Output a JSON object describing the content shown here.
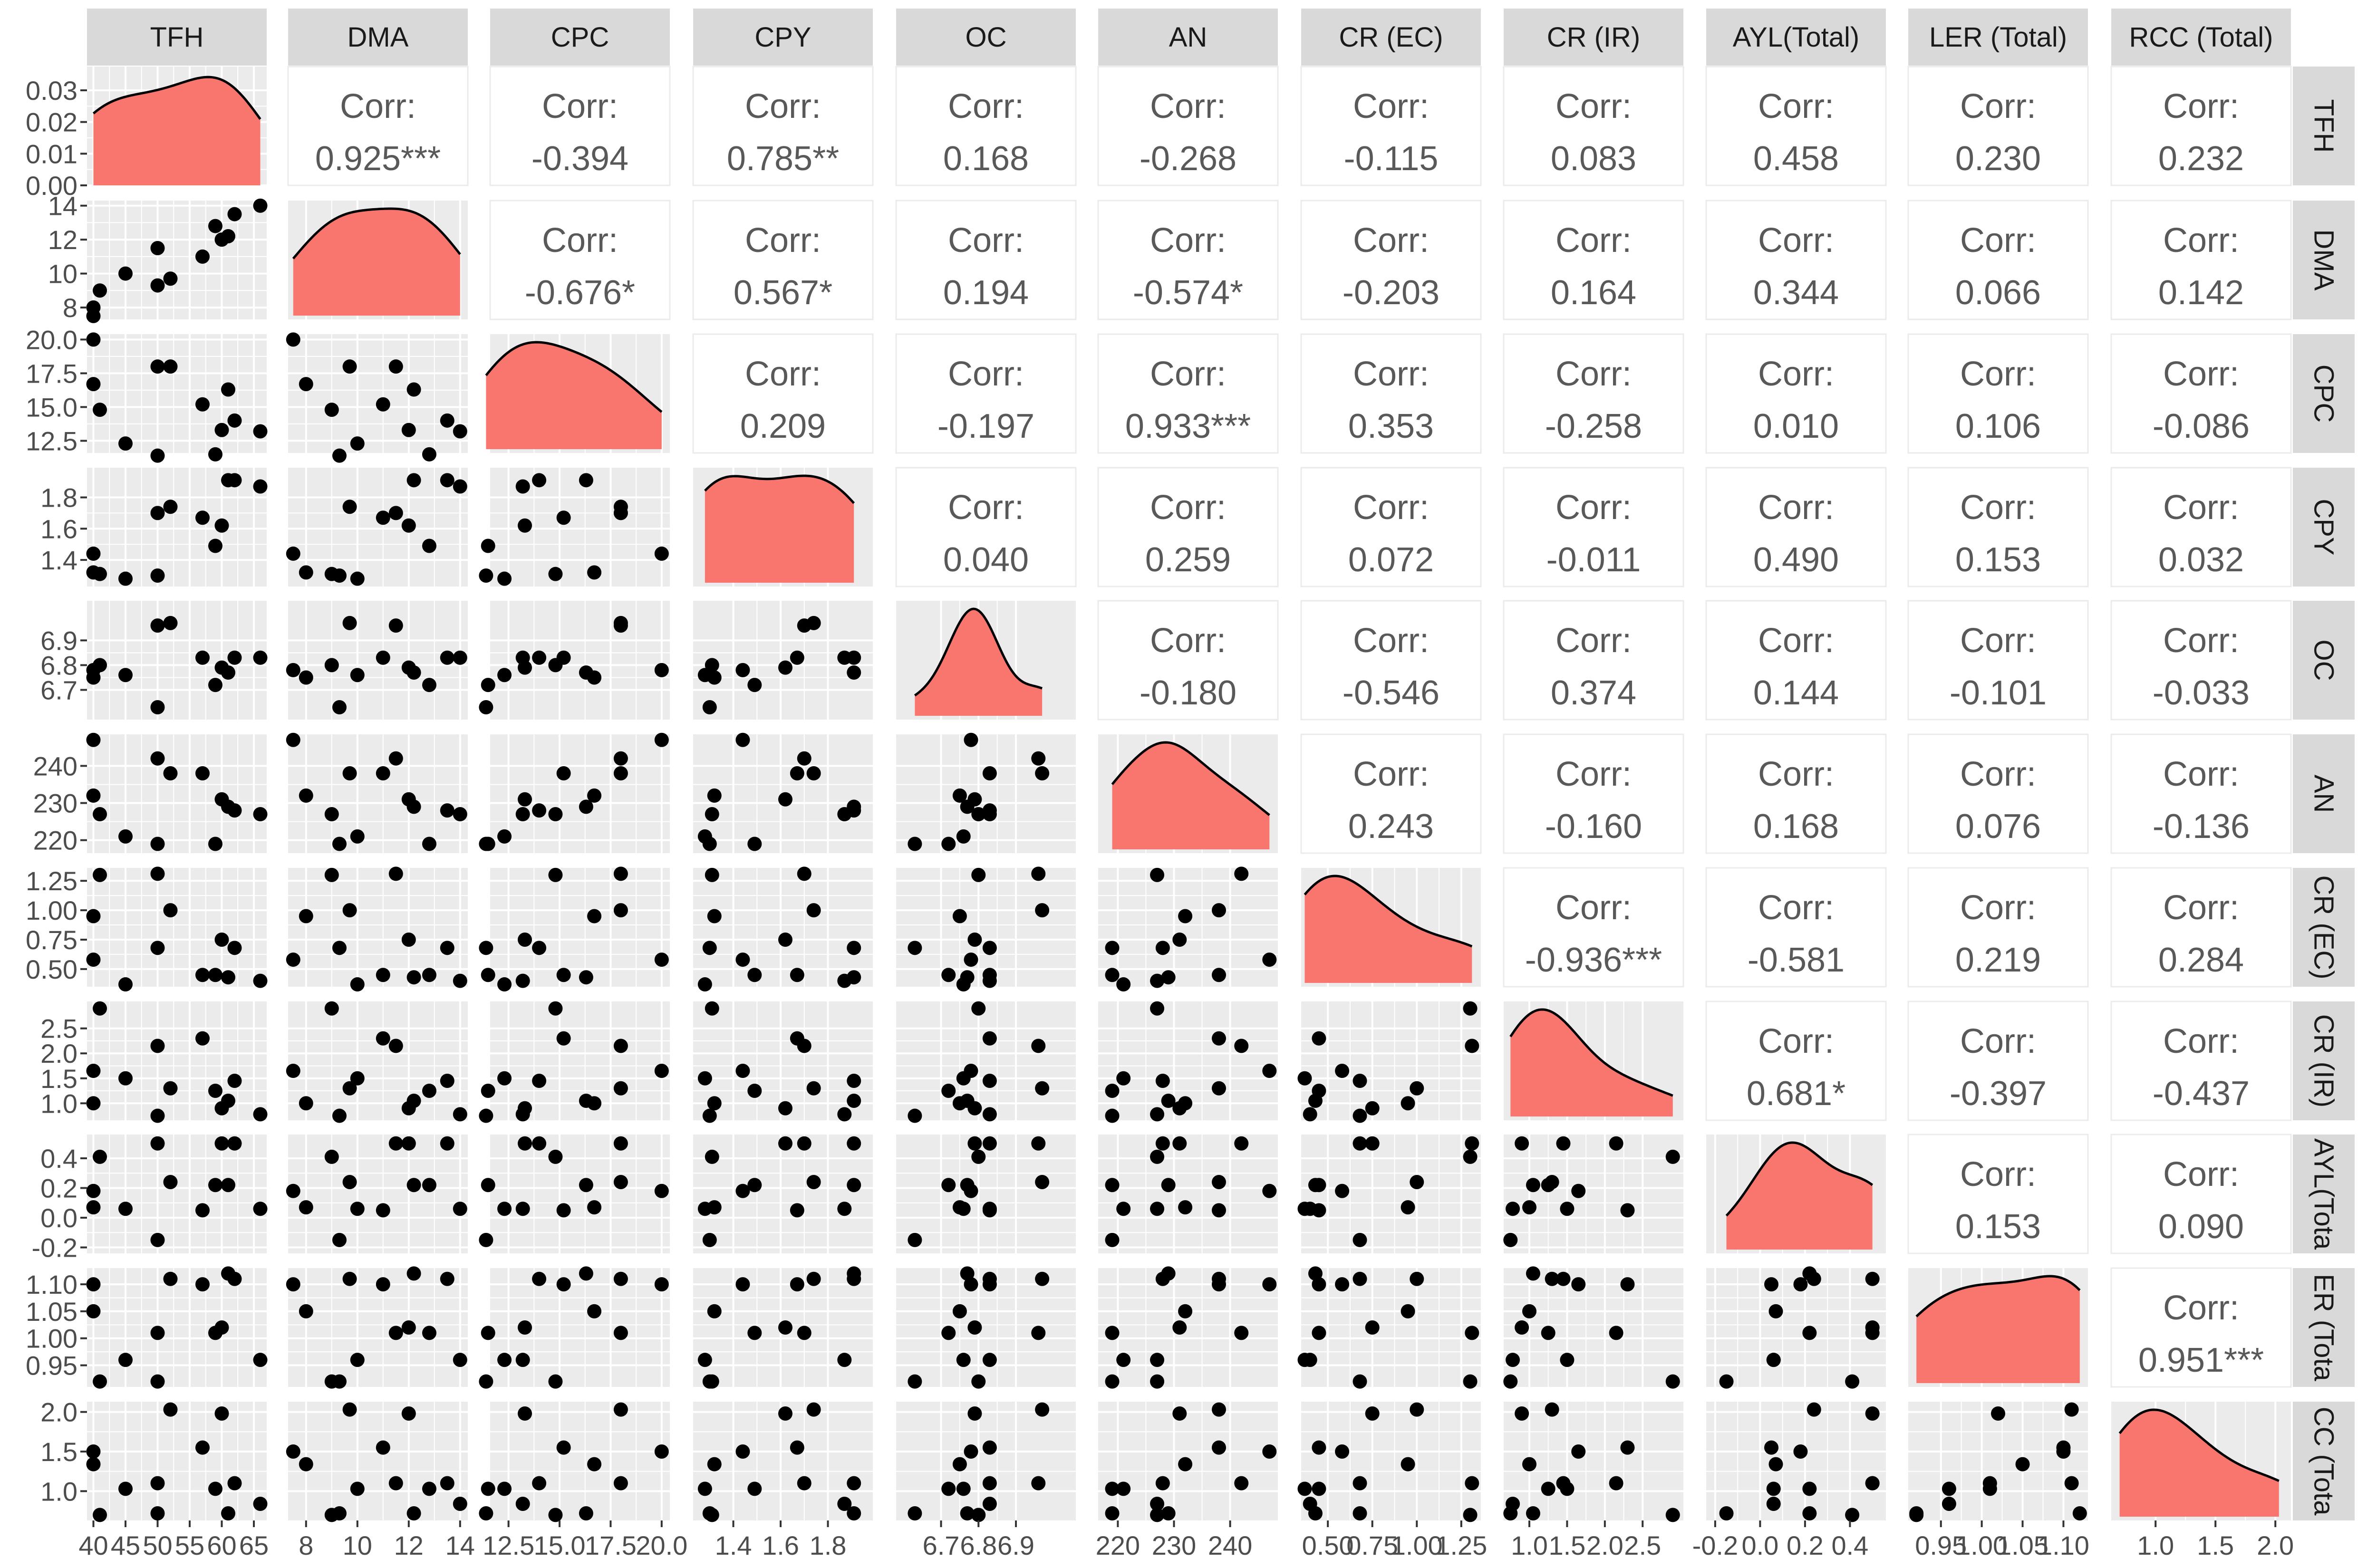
{
  "chart_data": {
    "type": "scatter-matrix",
    "variables": [
      "TFH",
      "DMA",
      "CPC",
      "CPY",
      "OC",
      "AN",
      "CR (EC)",
      "CR (IR)",
      "AYL(Total)",
      "LER (Total)",
      "RCC (Total)"
    ],
    "strip_labels_top": [
      "TFH",
      "DMA",
      "CPC",
      "CPY",
      "OC",
      "AN",
      "CR (EC)",
      "CR (IR)",
      "AYL(Total)",
      "LER (Total)",
      "RCC (Total)"
    ],
    "strip_labels_right": [
      "TFH",
      "DMA",
      "CPC",
      "CPY",
      "OC",
      "AN",
      "CR (EC)",
      "CR (IR)",
      "AYL(Tota",
      "ER (Tota",
      "CC (Tota"
    ],
    "corr_label": "Corr:",
    "correlations": [
      {
        "row": 0,
        "col": 1,
        "value": "0.925***"
      },
      {
        "row": 0,
        "col": 2,
        "value": "-0.394"
      },
      {
        "row": 0,
        "col": 3,
        "value": "0.785**"
      },
      {
        "row": 0,
        "col": 4,
        "value": "0.168"
      },
      {
        "row": 0,
        "col": 5,
        "value": "-0.268"
      },
      {
        "row": 0,
        "col": 6,
        "value": "-0.115"
      },
      {
        "row": 0,
        "col": 7,
        "value": "0.083"
      },
      {
        "row": 0,
        "col": 8,
        "value": "0.458"
      },
      {
        "row": 0,
        "col": 9,
        "value": "0.230"
      },
      {
        "row": 0,
        "col": 10,
        "value": "0.232"
      },
      {
        "row": 1,
        "col": 2,
        "value": "-0.676*"
      },
      {
        "row": 1,
        "col": 3,
        "value": "0.567*"
      },
      {
        "row": 1,
        "col": 4,
        "value": "0.194"
      },
      {
        "row": 1,
        "col": 5,
        "value": "-0.574*"
      },
      {
        "row": 1,
        "col": 6,
        "value": "-0.203"
      },
      {
        "row": 1,
        "col": 7,
        "value": "0.164"
      },
      {
        "row": 1,
        "col": 8,
        "value": "0.344"
      },
      {
        "row": 1,
        "col": 9,
        "value": "0.066"
      },
      {
        "row": 1,
        "col": 10,
        "value": "0.142"
      },
      {
        "row": 2,
        "col": 3,
        "value": "0.209"
      },
      {
        "row": 2,
        "col": 4,
        "value": "-0.197"
      },
      {
        "row": 2,
        "col": 5,
        "value": "0.933***"
      },
      {
        "row": 2,
        "col": 6,
        "value": "0.353"
      },
      {
        "row": 2,
        "col": 7,
        "value": "-0.258"
      },
      {
        "row": 2,
        "col": 8,
        "value": "0.010"
      },
      {
        "row": 2,
        "col": 9,
        "value": "0.106"
      },
      {
        "row": 2,
        "col": 10,
        "value": "-0.086"
      },
      {
        "row": 3,
        "col": 4,
        "value": "0.040"
      },
      {
        "row": 3,
        "col": 5,
        "value": "0.259"
      },
      {
        "row": 3,
        "col": 6,
        "value": "0.072"
      },
      {
        "row": 3,
        "col": 7,
        "value": "-0.011"
      },
      {
        "row": 3,
        "col": 8,
        "value": "0.490"
      },
      {
        "row": 3,
        "col": 9,
        "value": "0.153"
      },
      {
        "row": 3,
        "col": 10,
        "value": "0.032"
      },
      {
        "row": 4,
        "col": 5,
        "value": "-0.180"
      },
      {
        "row": 4,
        "col": 6,
        "value": "-0.546"
      },
      {
        "row": 4,
        "col": 7,
        "value": "0.374"
      },
      {
        "row": 4,
        "col": 8,
        "value": "0.144"
      },
      {
        "row": 4,
        "col": 9,
        "value": "-0.101"
      },
      {
        "row": 4,
        "col": 10,
        "value": "-0.033"
      },
      {
        "row": 5,
        "col": 6,
        "value": "0.243"
      },
      {
        "row": 5,
        "col": 7,
        "value": "-0.160"
      },
      {
        "row": 5,
        "col": 8,
        "value": "0.168"
      },
      {
        "row": 5,
        "col": 9,
        "value": "0.076"
      },
      {
        "row": 5,
        "col": 10,
        "value": "-0.136"
      },
      {
        "row": 6,
        "col": 7,
        "value": "-0.936***"
      },
      {
        "row": 6,
        "col": 8,
        "value": "-0.581"
      },
      {
        "row": 6,
        "col": 9,
        "value": "0.219"
      },
      {
        "row": 6,
        "col": 10,
        "value": "0.284"
      },
      {
        "row": 7,
        "col": 8,
        "value": "0.681*"
      },
      {
        "row": 7,
        "col": 9,
        "value": "-0.397"
      },
      {
        "row": 7,
        "col": 10,
        "value": "-0.437"
      },
      {
        "row": 8,
        "col": 9,
        "value": "0.153"
      },
      {
        "row": 8,
        "col": 10,
        "value": "0.090"
      },
      {
        "row": 9,
        "col": 10,
        "value": "0.951***"
      }
    ],
    "x_axes": [
      {
        "range": [
          39,
          67
        ],
        "ticks": [
          40,
          45,
          50,
          55,
          60,
          65
        ],
        "tick_labels": [
          "40",
          "45",
          "50",
          "55",
          "60",
          "65"
        ]
      },
      {
        "range": [
          7.3,
          14.3
        ],
        "ticks": [
          8,
          10,
          12,
          14
        ],
        "tick_labels": [
          "8",
          "10",
          "12",
          "14"
        ]
      },
      {
        "range": [
          11.6,
          20.4
        ],
        "ticks": [
          12.5,
          15.0,
          17.5,
          20.0
        ],
        "tick_labels": [
          "12.5",
          "15.0",
          "17.5",
          "20.0"
        ]
      },
      {
        "range": [
          1.23,
          1.99
        ],
        "ticks": [
          1.4,
          1.6,
          1.8
        ],
        "tick_labels": [
          "1.4",
          "1.6",
          "1.8"
        ]
      },
      {
        "range": [
          6.58,
          7.06
        ],
        "ticks": [
          6.7,
          6.8,
          6.9
        ],
        "tick_labels": [
          "6.7",
          "6.8",
          "6.9"
        ]
      },
      {
        "range": [
          216.5,
          248.5
        ],
        "ticks": [
          220,
          230,
          240
        ],
        "tick_labels": [
          "220",
          "230",
          "240"
        ]
      },
      {
        "range": [
          0.35,
          1.36
        ],
        "ticks": [
          0.5,
          0.75,
          1.0,
          1.25
        ],
        "tick_labels": [
          "0.50",
          "0.75",
          "1.00",
          "1.25"
        ]
      },
      {
        "range": [
          0.66,
          3.04
        ],
        "ticks": [
          1.0,
          1.5,
          2.0,
          2.5
        ],
        "tick_labels": [
          "1.0",
          "1.5",
          "2.0",
          "2.5"
        ]
      },
      {
        "range": [
          -0.24,
          0.56
        ],
        "ticks": [
          -0.2,
          0.0,
          0.2,
          0.4
        ],
        "tick_labels": [
          "-0.2",
          "0.0",
          "0.2",
          "0.4"
        ]
      },
      {
        "range": [
          0.91,
          1.13
        ],
        "ticks": [
          0.95,
          1.0,
          1.05,
          1.1
        ],
        "tick_labels": [
          "0.95",
          "1.00",
          "1.05",
          "1.10"
        ]
      },
      {
        "range": [
          0.63,
          2.13
        ],
        "ticks": [
          1.0,
          1.5,
          2.0
        ],
        "tick_labels": [
          "1.0",
          "1.5",
          "2.0"
        ]
      }
    ],
    "y_axes": [
      {
        "range": [
          0,
          0.0375
        ],
        "ticks": [
          0,
          0.01,
          0.02,
          0.03
        ],
        "tick_labels": [
          "0.00",
          "0.01",
          "0.02",
          "0.03"
        ]
      },
      {
        "range": [
          7.3,
          14.3
        ],
        "ticks": [
          8,
          10,
          12,
          14
        ],
        "tick_labels": [
          "8",
          "10",
          "12",
          "14"
        ]
      },
      {
        "range": [
          11.6,
          20.4
        ],
        "ticks": [
          12.5,
          15.0,
          17.5,
          20.0
        ],
        "tick_labels": [
          "12.5",
          "15.0",
          "17.5",
          "20.0"
        ]
      },
      {
        "range": [
          1.23,
          1.99
        ],
        "ticks": [
          1.4,
          1.6,
          1.8
        ],
        "tick_labels": [
          "1.4",
          "1.6",
          "1.8"
        ]
      },
      {
        "range": [
          6.58,
          7.06
        ],
        "ticks": [
          6.7,
          6.8,
          6.9
        ],
        "tick_labels": [
          "6.7",
          "6.8",
          "6.9"
        ]
      },
      {
        "range": [
          216.5,
          248.5
        ],
        "ticks": [
          220,
          230,
          240
        ],
        "tick_labels": [
          "220",
          "230",
          "240"
        ]
      },
      {
        "range": [
          0.35,
          1.36
        ],
        "ticks": [
          0.5,
          0.75,
          1.0,
          1.25
        ],
        "tick_labels": [
          "0.50",
          "0.75",
          "1.00",
          "1.25"
        ]
      },
      {
        "range": [
          0.66,
          3.04
        ],
        "ticks": [
          1.0,
          1.5,
          2.0,
          2.5
        ],
        "tick_labels": [
          "1.0",
          "1.5",
          "2.0",
          "2.5"
        ]
      },
      {
        "range": [
          -0.24,
          0.56
        ],
        "ticks": [
          -0.2,
          0.0,
          0.2,
          0.4
        ],
        "tick_labels": [
          "-0.2",
          "0.0",
          "0.2",
          "0.4"
        ]
      },
      {
        "range": [
          0.91,
          1.13
        ],
        "ticks": [
          0.95,
          1.0,
          1.05,
          1.1
        ],
        "tick_labels": [
          "0.95",
          "1.00",
          "1.05",
          "1.10"
        ]
      },
      {
        "range": [
          0.63,
          2.13
        ],
        "ticks": [
          1.0,
          1.5,
          2.0
        ],
        "tick_labels": [
          "1.0",
          "1.5",
          "2.0"
        ]
      }
    ],
    "observations": {
      "TFH": [
        40,
        40,
        41,
        45,
        50,
        50,
        52,
        57,
        59,
        60,
        61,
        62,
        66
      ],
      "DMA": [
        7.5,
        8.0,
        9.0,
        10.0,
        9.3,
        11.5,
        9.7,
        11.0,
        12.8,
        12.0,
        12.2,
        13.5,
        14.0
      ],
      "CPC": [
        20.0,
        16.7,
        14.8,
        12.3,
        11.4,
        18.0,
        18.0,
        15.2,
        11.5,
        13.3,
        16.3,
        14.0,
        13.2
      ],
      "CPY": [
        1.44,
        1.32,
        1.31,
        1.28,
        1.3,
        1.7,
        1.74,
        1.67,
        1.49,
        1.62,
        1.91,
        1.91,
        1.87
      ],
      "OC": [
        6.78,
        6.75,
        6.8,
        6.76,
        6.63,
        6.96,
        6.97,
        6.83,
        6.72,
        6.79,
        6.77,
        6.83,
        6.83
      ],
      "AN": [
        247,
        232,
        227,
        221,
        219,
        242,
        238,
        238,
        219,
        231,
        229,
        228,
        227
      ],
      "CR (EC)": [
        0.58,
        0.95,
        1.3,
        0.37,
        0.68,
        1.31,
        1.0,
        0.45,
        0.45,
        0.75,
        0.43,
        0.68,
        0.4
      ],
      "CR (IR)": [
        1.65,
        1.0,
        2.9,
        1.5,
        0.75,
        2.15,
        1.3,
        2.3,
        1.25,
        0.9,
        1.05,
        1.45,
        0.78
      ],
      "AYL(Total)": [
        0.18,
        0.07,
        0.41,
        0.06,
        -0.15,
        0.5,
        0.24,
        0.05,
        0.22,
        0.5,
        0.22,
        0.5,
        0.06
      ],
      "LER (Total)": [
        1.1,
        1.05,
        0.92,
        0.96,
        0.92,
        1.01,
        1.11,
        1.1,
        1.01,
        1.02,
        1.12,
        1.11,
        0.96
      ],
      "RCC (Total)": [
        1.5,
        1.34,
        0.7,
        1.03,
        0.72,
        1.1,
        2.03,
        1.55,
        1.03,
        1.98,
        0.72,
        1.1,
        0.84
      ]
    }
  }
}
